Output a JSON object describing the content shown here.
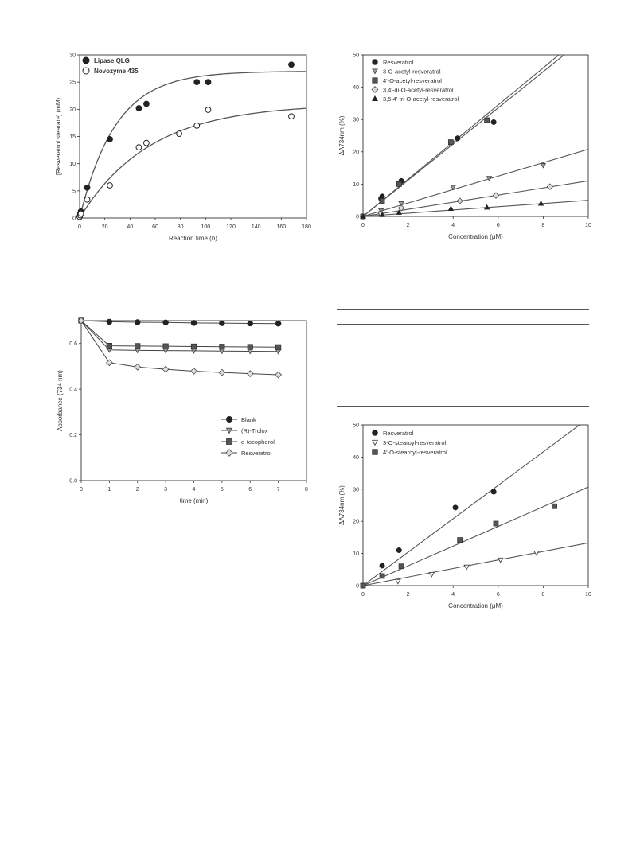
{
  "rules": [
    {},
    {},
    {}
  ],
  "chart_data": [
    {
      "type": "scatter",
      "title": "",
      "xlabel": "Reaction time (h)",
      "ylabel": "[Resveratrol stearate] (mM)",
      "xlim": [
        0,
        180
      ],
      "ylim": [
        0,
        30
      ],
      "xticks": [
        0,
        20,
        40,
        60,
        80,
        100,
        120,
        140,
        160,
        180
      ],
      "yticks": [
        0,
        5,
        10,
        15,
        20,
        25,
        30
      ],
      "legend": "top-left",
      "grid": false,
      "series": [
        {
          "name": "Lipase QLG",
          "marker": "filled-circle",
          "x": [
            0,
            0.5,
            1,
            6,
            24,
            47,
            53,
            93,
            102,
            168
          ],
          "y": [
            0.3,
            0.8,
            1.2,
            5.6,
            14.5,
            20.2,
            21.0,
            25.0,
            25.0,
            28.2
          ],
          "fit": {
            "model": "a*(1-exp(-k*x))",
            "a": 27.0,
            "k": 0.035
          }
        },
        {
          "name": "Novozyme 435",
          "marker": "open-circle",
          "x": [
            0,
            0.5,
            1,
            6,
            24,
            47,
            53,
            79,
            93,
            102,
            168
          ],
          "y": [
            0.2,
            0.5,
            0.8,
            3.4,
            6.0,
            13.0,
            13.8,
            15.5,
            17.0,
            19.9,
            18.7
          ],
          "fit": {
            "model": "a*(1-exp(-k*x))",
            "a": 21.0,
            "k": 0.018
          }
        }
      ]
    },
    {
      "type": "scatter",
      "title": "",
      "xlabel": "Concentration (μM)",
      "ylabel": "ΔA734nm (%)",
      "xlim": [
        0,
        10
      ],
      "ylim": [
        0,
        50
      ],
      "xticks": [
        0,
        2,
        4,
        6,
        8,
        10
      ],
      "yticks": [
        0,
        10,
        20,
        30,
        40,
        50
      ],
      "legend": "top-left",
      "grid": false,
      "series": [
        {
          "name": "Resveratrol",
          "marker": "filled-circle",
          "x": [
            0,
            0.8,
            0.85,
            1.7,
            4.2,
            5.8
          ],
          "y": [
            0,
            5.5,
            6.2,
            11.0,
            24.2,
            29.2
          ],
          "slope": 5.6
        },
        {
          "name": "3-O-acetyl-resveratrol",
          "marker": "down-triangle",
          "x": [
            0,
            0.8,
            1.7,
            4.0,
            5.6,
            8.0
          ],
          "y": [
            0,
            1.8,
            4.0,
            9.0,
            11.8,
            15.8
          ],
          "slope": 2.08
        },
        {
          "name": "4'-O-acetyl-resveratrol",
          "marker": "filled-square",
          "x": [
            0,
            0.85,
            1.6,
            3.9,
            5.5
          ],
          "y": [
            0,
            4.8,
            10.0,
            23.0,
            29.8
          ],
          "slope": 5.75
        },
        {
          "name": "3,4'-di-O-acetyl-resveratrol",
          "marker": "open-diamond",
          "x": [
            0,
            0.8,
            1.7,
            4.3,
            5.9,
            8.3
          ],
          "y": [
            0,
            1.0,
            2.6,
            4.8,
            6.5,
            9.2
          ],
          "slope": 1.1
        },
        {
          "name": "3,5,4'-tri-O-acetyl-resveratrol",
          "marker": "filled-triangle",
          "x": [
            0,
            0.85,
            1.6,
            3.9,
            5.5,
            7.9
          ],
          "y": [
            0,
            0.5,
            1.2,
            2.4,
            2.8,
            4.0
          ],
          "slope": 0.5
        }
      ]
    },
    {
      "type": "line",
      "title": "",
      "xlabel": "time (min)",
      "ylabel": "Absorbance (734 nm)",
      "xlim": [
        0,
        8
      ],
      "ylim": [
        0.0,
        0.7
      ],
      "xticks": [
        0,
        1,
        2,
        3,
        4,
        5,
        6,
        7,
        8
      ],
      "yticks": [
        0.0,
        0.2,
        0.4,
        0.6
      ],
      "legend": "bottom-right",
      "grid": false,
      "x": [
        0,
        1,
        2,
        3,
        4,
        5,
        6,
        7
      ],
      "series": [
        {
          "name": "Blank",
          "marker": "filled-circle",
          "values": [
            0.7,
            0.695,
            0.693,
            0.692,
            0.69,
            0.689,
            0.688,
            0.687
          ]
        },
        {
          "name": "(R)-Trolox",
          "marker": "down-triangle",
          "values": [
            0.7,
            0.572,
            0.57,
            0.569,
            0.568,
            0.567,
            0.566,
            0.565
          ]
        },
        {
          "name": "α-tocopherol",
          "marker": "filled-square",
          "values": [
            0.7,
            0.59,
            0.589,
            0.588,
            0.587,
            0.586,
            0.585,
            0.584
          ]
        },
        {
          "name": "Resveratrol",
          "marker": "open-diamond",
          "values": [
            0.7,
            0.516,
            0.497,
            0.487,
            0.479,
            0.473,
            0.468,
            0.463
          ]
        }
      ]
    },
    {
      "type": "scatter",
      "title": "",
      "xlabel": "Concentration (μM)",
      "ylabel": "ΔA734nm (%)",
      "xlim": [
        0,
        10
      ],
      "ylim": [
        0,
        50
      ],
      "xticks": [
        0,
        2,
        4,
        6,
        8,
        10
      ],
      "yticks": [
        0,
        10,
        20,
        30,
        40,
        50
      ],
      "legend": "top-left",
      "grid": false,
      "series": [
        {
          "name": "Resveratrol",
          "marker": "filled-circle",
          "x": [
            0,
            0.85,
            1.6,
            4.1,
            5.8
          ],
          "y": [
            0,
            6.2,
            11.0,
            24.3,
            29.2
          ],
          "slope": 5.2
        },
        {
          "name": "3-O-stearoyl-resveratrol",
          "marker": "open-down-triangle",
          "x": [
            0,
            1.55,
            3.05,
            4.6,
            6.1,
            7.7
          ],
          "y": [
            0,
            1.3,
            3.5,
            5.8,
            8.0,
            10.2
          ],
          "slope": 1.33
        },
        {
          "name": "4'-O-stearoyl-resveratrol",
          "marker": "filled-square",
          "x": [
            0,
            0.85,
            1.7,
            4.3,
            5.9,
            8.5
          ],
          "y": [
            0,
            3.0,
            6.0,
            14.2,
            19.3,
            24.7
          ],
          "slope": 3.07
        }
      ]
    }
  ]
}
